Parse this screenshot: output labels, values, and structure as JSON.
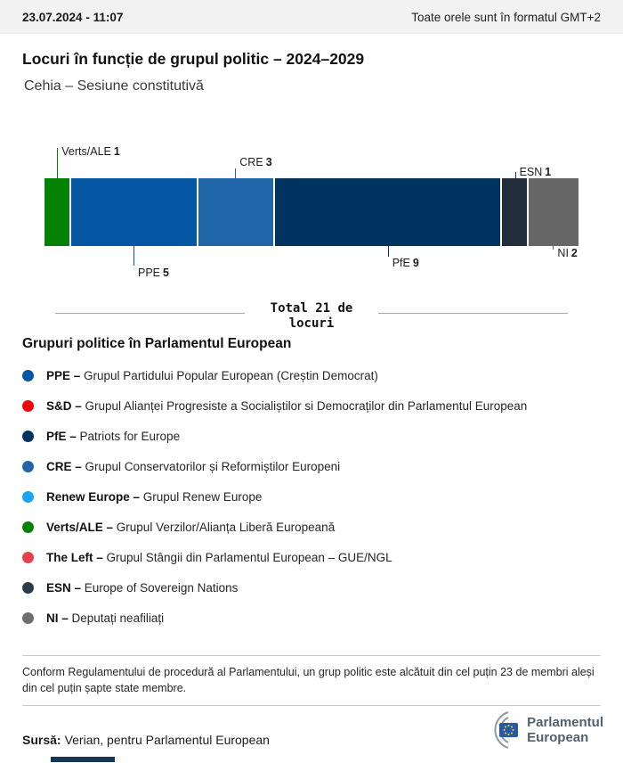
{
  "header": {
    "datetime": "23.07.2024 - 11:07",
    "timezone_note": "Toate orele sunt în formatul GMT+2"
  },
  "title": "Locuri în funcție de grupul politic – 2024–2029",
  "subtitle": "Cehia – Sesiune constitutivă",
  "chart_data": {
    "type": "bar",
    "orientation": "horizontal-stacked",
    "title": "Locuri în funcție de grupul politic – 2024–2029",
    "region": "Cehia – Sesiune constitutivă",
    "total_seats": 21,
    "total_label": "Total 21 de locuri",
    "segments": [
      {
        "group": "Verts/ALE",
        "seats": 1,
        "color": "#038103",
        "callout": "above"
      },
      {
        "group": "PPE",
        "seats": 5,
        "color": "#0556a3",
        "callout": "below"
      },
      {
        "group": "CRE",
        "seats": 3,
        "color": "#2066a8",
        "callout": "above"
      },
      {
        "group": "PfE",
        "seats": 9,
        "color": "#00335f",
        "callout": "below"
      },
      {
        "group": "ESN",
        "seats": 1,
        "color": "#232e3d",
        "callout": "above"
      },
      {
        "group": "NI",
        "seats": 2,
        "color": "#666666",
        "callout": "below"
      }
    ]
  },
  "legend": {
    "heading": "Grupuri politice în Parlamentul European",
    "items": [
      {
        "label": "PPE –",
        "desc": "Grupul Partidului Popular European (Creștin Democrat)",
        "color": "#0556a3"
      },
      {
        "label": "S&D –",
        "desc": "Grupul Alianței Progresiste a Socialiștilor si Democraților din Parlamentul European",
        "color": "#f2000c"
      },
      {
        "label": "PfE –",
        "desc": "Patriots for Europe",
        "color": "#00335f"
      },
      {
        "label": "CRE –",
        "desc": "Grupul Conservatorilor și Reformiștilor Europeni",
        "color": "#2066a8"
      },
      {
        "label": "Renew Europe –",
        "desc": "Grupul Renew Europe",
        "color": "#1ea2f3"
      },
      {
        "label": "Verts/ALE –",
        "desc": "Grupul Verzilor/Alianța Liberă Europeană",
        "color": "#038103"
      },
      {
        "label": "The Left –",
        "desc": "Grupul Stângii din Parlamentul European – GUE/NGL",
        "color": "#e8404a"
      },
      {
        "label": "ESN –",
        "desc": "Europe of Sovereign Nations",
        "color": "#2b3a4d"
      },
      {
        "label": "NI –",
        "desc": "Deputați neafiliați",
        "color": "#6e6e6e"
      }
    ]
  },
  "footnote": "Conform Regulamentului de procedură al Parlamentului, un grup politic este alcătuit din cel puțin 23 de membri aleși din cel puțin șapte state membre.",
  "source": {
    "label": "Sursă:",
    "text": "Verian, pentru Parlamentul European"
  },
  "logo": {
    "line1": "Parlamentul",
    "line2": "European"
  }
}
